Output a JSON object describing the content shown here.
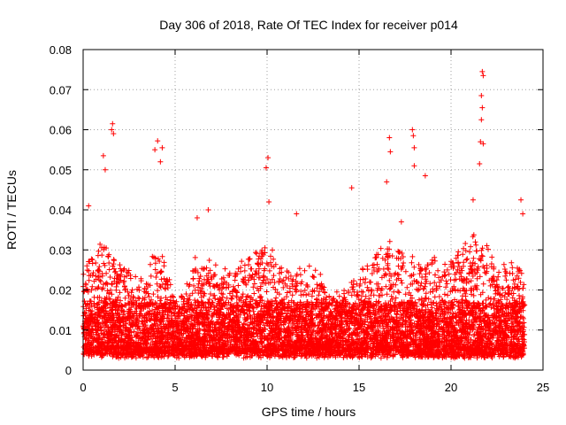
{
  "chart_data": {
    "type": "scatter",
    "title": "Day 306 of 2018, Rate Of TEC Index for receiver p014",
    "xlabel": "GPS time / hours",
    "ylabel": "ROTI / TECUs",
    "xlim": [
      0,
      25
    ],
    "ylim": [
      0,
      0.08
    ],
    "grid": true,
    "marker": "+",
    "color": "#ff0000",
    "x_ticks": [
      0,
      5,
      10,
      15,
      20,
      25
    ],
    "x_tick_labels": [
      "0",
      "5",
      "10",
      "15",
      "20",
      "25"
    ],
    "y_ticks": [
      0,
      0.01,
      0.02,
      0.03,
      0.04,
      0.05,
      0.06,
      0.07,
      0.08
    ],
    "y_tick_labels": [
      "0",
      "0.01",
      "0.02",
      "0.03",
      "0.04",
      "0.05",
      "0.06",
      "0.07",
      "0.08"
    ],
    "series": [
      {
        "name": "ROTI",
        "envelope": {
          "x": [
            0,
            0.5,
            1.0,
            1.5,
            2.0,
            2.5,
            3.0,
            3.5,
            4.0,
            4.5,
            5.0,
            5.5,
            6.0,
            6.5,
            7.0,
            7.5,
            8.0,
            8.5,
            9.0,
            9.5,
            10.0,
            10.5,
            11.0,
            11.5,
            12.0,
            12.5,
            13.0,
            13.5,
            14.0,
            14.5,
            15.0,
            15.5,
            16.0,
            16.5,
            17.0,
            17.5,
            18.0,
            18.5,
            19.0,
            19.5,
            20.0,
            20.5,
            21.0,
            21.5,
            22.0,
            22.5,
            23.0,
            23.5,
            24.0
          ],
          "typical_max": [
            0.025,
            0.03,
            0.034,
            0.03,
            0.026,
            0.024,
            0.022,
            0.025,
            0.03,
            0.026,
            0.018,
            0.019,
            0.028,
            0.03,
            0.027,
            0.026,
            0.025,
            0.026,
            0.028,
            0.032,
            0.033,
            0.028,
            0.025,
            0.024,
            0.026,
            0.025,
            0.023,
            0.02,
            0.019,
            0.021,
            0.024,
            0.027,
            0.03,
            0.032,
            0.03,
            0.03,
            0.028,
            0.027,
            0.028,
            0.026,
            0.028,
            0.031,
            0.034,
            0.032,
            0.03,
            0.027,
            0.025,
            0.027,
            0.022
          ]
        },
        "peaks": [
          {
            "x": 0.3,
            "y": 0.041
          },
          {
            "x": 1.1,
            "y": 0.0535
          },
          {
            "x": 1.2,
            "y": 0.05
          },
          {
            "x": 1.55,
            "y": 0.06
          },
          {
            "x": 1.6,
            "y": 0.0615
          },
          {
            "x": 1.65,
            "y": 0.059
          },
          {
            "x": 3.9,
            "y": 0.055
          },
          {
            "x": 4.05,
            "y": 0.0572
          },
          {
            "x": 4.2,
            "y": 0.052
          },
          {
            "x": 4.3,
            "y": 0.0555
          },
          {
            "x": 6.2,
            "y": 0.038
          },
          {
            "x": 6.8,
            "y": 0.04
          },
          {
            "x": 9.95,
            "y": 0.0505
          },
          {
            "x": 10.05,
            "y": 0.053
          },
          {
            "x": 10.1,
            "y": 0.042
          },
          {
            "x": 11.6,
            "y": 0.039
          },
          {
            "x": 14.6,
            "y": 0.0455
          },
          {
            "x": 16.5,
            "y": 0.047
          },
          {
            "x": 16.65,
            "y": 0.058
          },
          {
            "x": 16.7,
            "y": 0.0545
          },
          {
            "x": 17.3,
            "y": 0.037
          },
          {
            "x": 17.9,
            "y": 0.06
          },
          {
            "x": 17.95,
            "y": 0.0585
          },
          {
            "x": 18.0,
            "y": 0.0555
          },
          {
            "x": 18.0,
            "y": 0.051
          },
          {
            "x": 18.6,
            "y": 0.0485
          },
          {
            "x": 21.2,
            "y": 0.0425
          },
          {
            "x": 21.55,
            "y": 0.0515
          },
          {
            "x": 21.6,
            "y": 0.057
          },
          {
            "x": 21.65,
            "y": 0.0625
          },
          {
            "x": 21.65,
            "y": 0.0685
          },
          {
            "x": 21.7,
            "y": 0.0745
          },
          {
            "x": 21.75,
            "y": 0.0735
          },
          {
            "x": 21.7,
            "y": 0.0655
          },
          {
            "x": 21.75,
            "y": 0.0565
          },
          {
            "x": 23.8,
            "y": 0.0425
          },
          {
            "x": 23.9,
            "y": 0.039
          }
        ]
      }
    ]
  }
}
